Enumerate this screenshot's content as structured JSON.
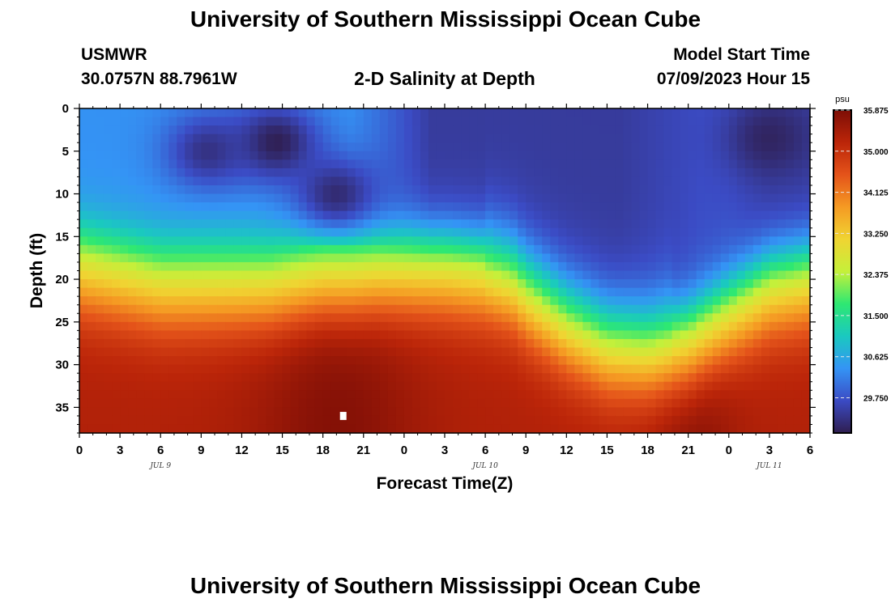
{
  "page": {
    "title": "University of Southern Mississippi Ocean Cube",
    "footer_title": "University of Southern Mississippi Ocean Cube",
    "station": "USMWR",
    "coords": "30.0757N  88.7961W",
    "subtitle": "2-D Salinity at Depth",
    "model_label": "Model Start Time",
    "model_time": "07/09/2023 Hour 15"
  },
  "chart_data": {
    "type": "heatmap",
    "title": "2-D Salinity at Depth",
    "xlabel": "Forecast Time(Z)",
    "ylabel": "Depth (ft)",
    "x_tick_labels": [
      "0",
      "3",
      "6",
      "9",
      "12",
      "15",
      "18",
      "21",
      "0",
      "3",
      "6",
      "9",
      "12",
      "15",
      "18",
      "21",
      "0",
      "3",
      "6"
    ],
    "x_date_labels": [
      {
        "label": "JUL 9",
        "tick_index": 2
      },
      {
        "label": "JUL 10",
        "tick_index": 10
      },
      {
        "label": "JUL 11",
        "tick_index": 17
      }
    ],
    "y_ticks": [
      0,
      5,
      10,
      15,
      20,
      25,
      30,
      35
    ],
    "ylim": [
      0,
      38
    ],
    "x_hours_range": [
      0,
      54
    ],
    "colorbar": {
      "units": "psu",
      "min": 29.0,
      "max": 35.875,
      "tick_labels": [
        "35.875",
        "35.000",
        "34.125",
        "33.250",
        "32.375",
        "31.500",
        "30.625",
        "29.750"
      ],
      "tick_values": [
        35.875,
        35.0,
        34.125,
        33.25,
        32.375,
        31.5,
        30.625,
        29.75
      ],
      "colors": [
        "#2f1e50",
        "#3b4bc4",
        "#3494f5",
        "#1ac9c0",
        "#2ee872",
        "#c5f03a",
        "#f0d432",
        "#f59a23",
        "#e4531a",
        "#bb2509",
        "#7d0e06"
      ]
    },
    "halocline": {
      "time_hours": [
        0,
        3,
        6,
        9,
        12,
        14,
        16,
        18,
        20,
        21,
        22,
        24,
        27,
        30,
        32,
        33,
        36,
        39,
        42,
        45,
        48,
        51,
        54
      ],
      "depth_ft": [
        15,
        16,
        17,
        17,
        17,
        17,
        16.5,
        16,
        16,
        15.8,
        15.6,
        15.5,
        15.5,
        16,
        17,
        18.5,
        22,
        24.5,
        25,
        24,
        21,
        18,
        17
      ]
    },
    "fresh_patches": [
      {
        "time_h": 14.5,
        "depth_ft": 4,
        "salinity_min": 29.0
      },
      {
        "time_h": 19,
        "depth_ft": 10,
        "salinity_min": 29.2
      },
      {
        "time_h": 9.5,
        "depth_ft": 5,
        "salinity_min": 29.3
      },
      {
        "time_h": 51,
        "depth_ft": 3.5,
        "salinity_min": 29.1
      }
    ],
    "max_salinity_note": "35.875 near 36 ft around 18-24Z Jul 9 and 21Z Jul 10"
  }
}
